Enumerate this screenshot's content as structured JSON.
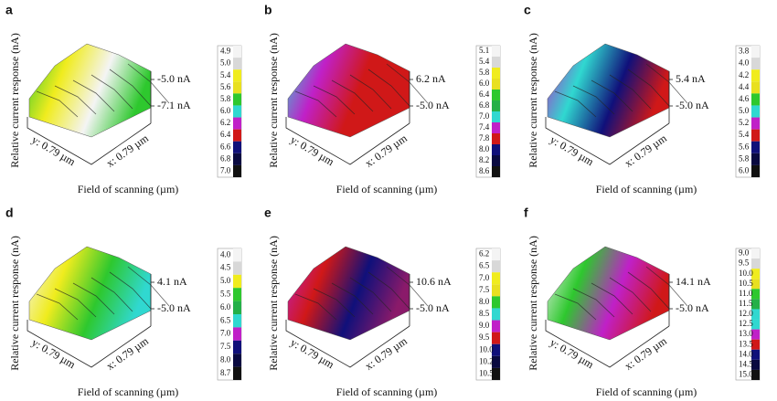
{
  "panels": [
    {
      "label": "a",
      "ylabel": "Relative current response (nA)",
      "xlabel": "Field of scanning (µm)",
      "y_axis": "y: 0.79 µm",
      "x_axis": "x: 0.79 µm",
      "z_labels": [
        "-5.0 nA",
        "-7.1 nA"
      ],
      "colorbar": [
        "4.9",
        "5.0",
        "5.4",
        "5.6",
        "5.8",
        "6.0",
        "6.2",
        "6.4",
        "6.6",
        "6.8",
        "7.0"
      ]
    },
    {
      "label": "b",
      "ylabel": "Relative current response (nA)",
      "xlabel": "Field of scanning (µm)",
      "y_axis": "y: 0.79 µm",
      "x_axis": "x: 0.79 µm",
      "z_labels": [
        "6.2 nA",
        "-5.0 nA"
      ],
      "colorbar": [
        "5.1",
        "5.4",
        "5.8",
        "6.0",
        "6.4",
        "6.8",
        "7.0",
        "7.4",
        "7.8",
        "8.0",
        "8.2",
        "8.6"
      ]
    },
    {
      "label": "c",
      "ylabel": "Relative current response (nA)",
      "xlabel": "Field of scanning (µm)",
      "y_axis": "y: 0.79 µm",
      "x_axis": "x: 0.79 µm",
      "z_labels": [
        "5.4 nA",
        "-5.0 nA"
      ],
      "colorbar": [
        "3.8",
        "4.0",
        "4.2",
        "4.4",
        "4.6",
        "5.0",
        "5.2",
        "5.4",
        "5.6",
        "5.8",
        "6.0"
      ]
    },
    {
      "label": "d",
      "ylabel": "Relative current response (nA)",
      "xlabel": "Field of scanning (µm)",
      "y_axis": "y: 0.79 µm",
      "x_axis": "x: 0.79 µm",
      "z_labels": [
        "4.1 nA",
        "-5.0 nA"
      ],
      "colorbar": [
        "4.0",
        "4.5",
        "5.0",
        "5.5",
        "6.0",
        "6.5",
        "7.0",
        "7.5",
        "8.0",
        "8.7"
      ]
    },
    {
      "label": "e",
      "ylabel": "Relative current response (nA)",
      "xlabel": "Field of scanning (µm)",
      "y_axis": "y: 0.79 µm",
      "x_axis": "x: 0.79 µm",
      "z_labels": [
        "10.6 nA",
        "-5.0 nA"
      ],
      "colorbar": [
        "6.2",
        "6.5",
        "7.0",
        "7.5",
        "8.0",
        "8.5",
        "9.0",
        "9.5",
        "10.0",
        "10.2",
        "10.5"
      ]
    },
    {
      "label": "f",
      "ylabel": "Relative current response (nA)",
      "xlabel": "Field of scanning (µm)",
      "y_axis": "y: 0.79 µm",
      "x_axis": "x: 0.79 µm",
      "z_labels": [
        "14.1 nA",
        "-5.0 nA"
      ],
      "colorbar": [
        "9.0",
        "9.5",
        "10.0",
        "10.5",
        "11.0",
        "11.5",
        "12.0",
        "12.5",
        "13.0",
        "13.5",
        "14.0",
        "14.5",
        "15.0"
      ]
    }
  ]
}
